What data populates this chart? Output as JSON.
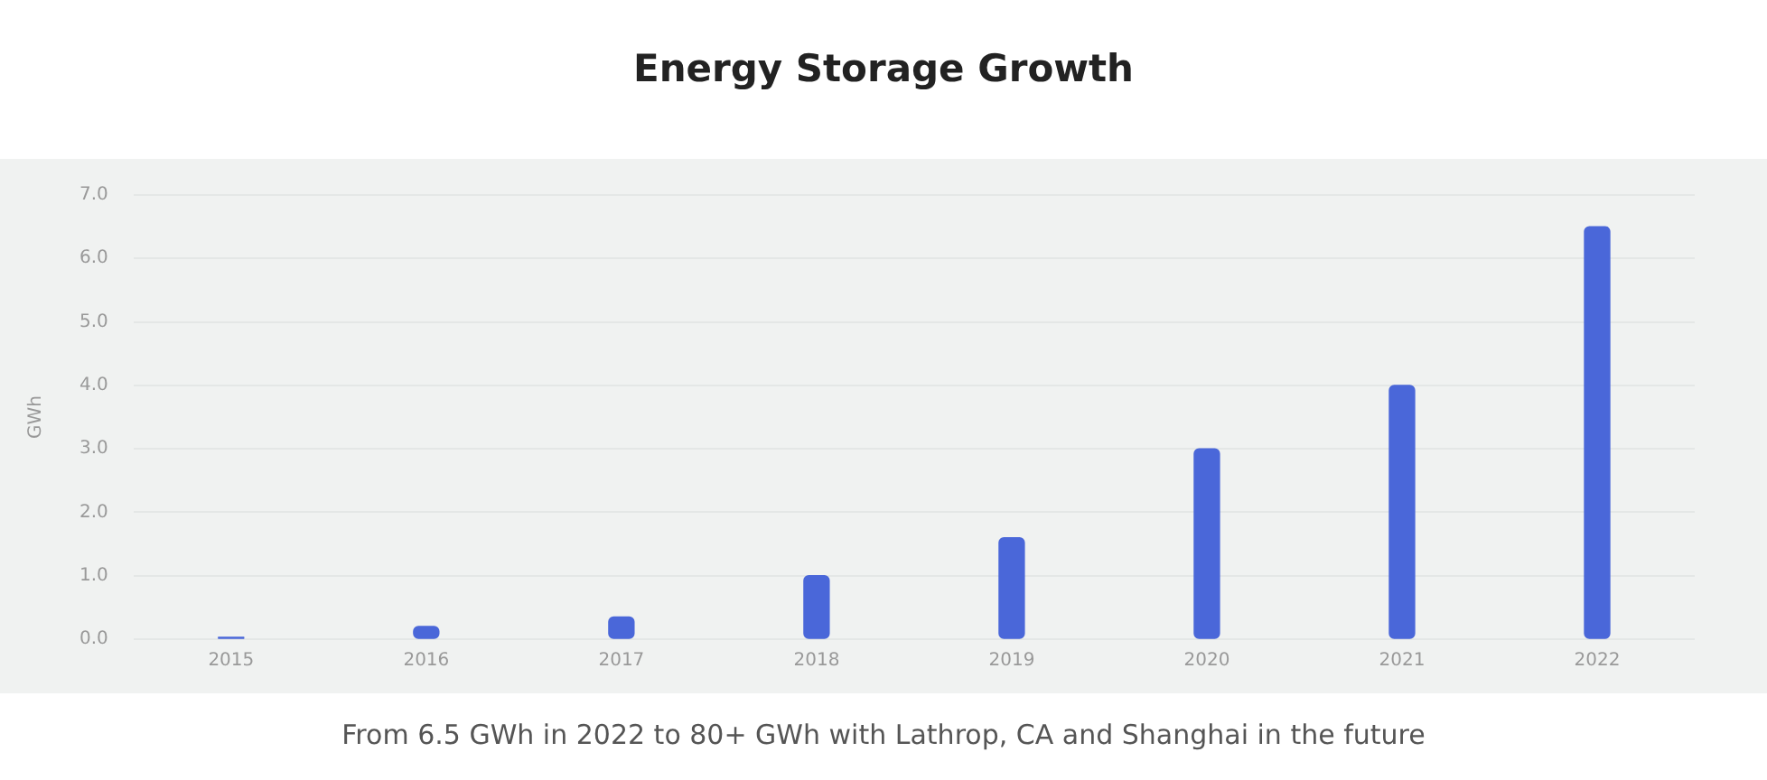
{
  "chart_data": {
    "type": "bar",
    "title": "Energy Storage Growth",
    "ylabel": "GWh",
    "categories": [
      "2015",
      "2016",
      "2017",
      "2018",
      "2019",
      "2020",
      "2021",
      "2022"
    ],
    "values": [
      0.03,
      0.2,
      0.35,
      1.0,
      1.6,
      3.0,
      4.0,
      6.5
    ],
    "color": "#4a67d9",
    "ylim": [
      0,
      7
    ],
    "yticks": [
      {
        "value": 0,
        "label": "0.0"
      },
      {
        "value": 1,
        "label": "1.0"
      },
      {
        "value": 2,
        "label": "2.0"
      },
      {
        "value": 3,
        "label": "3.0"
      },
      {
        "value": 4,
        "label": "4.0"
      },
      {
        "value": 5,
        "label": "5.0"
      },
      {
        "value": 6,
        "label": "6.0"
      },
      {
        "value": 7,
        "label": "7.0"
      }
    ],
    "grid": "y",
    "annotations": [
      "From 6.5 GWh in 2022 to 80+ GWh with Lathrop, CA and Shanghai in the future"
    ]
  }
}
